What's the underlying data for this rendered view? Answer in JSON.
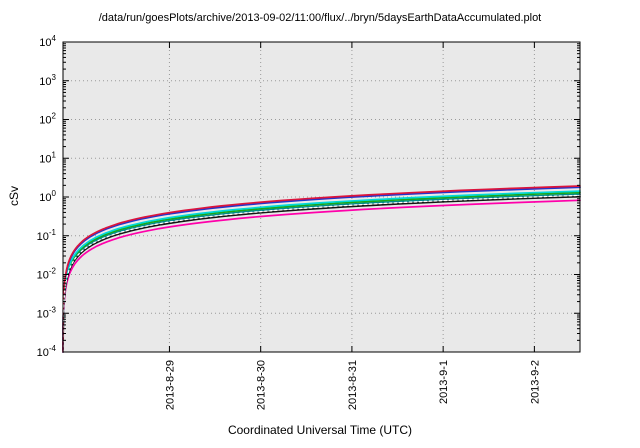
{
  "title": "/data/run/goesPlots/archive/2013-09-02/11:00/flux/../bryn/5daysEarthDataAccumulated.plot",
  "chart_data": {
    "type": "line",
    "title": "/data/run/goesPlots/archive/2013-09-02/11:00/flux/../bryn/5daysEarthDataAccumulated.plot",
    "xlabel": "Coordinated Universal Time (UTC)",
    "ylabel": "cSv",
    "y_scale": "log10",
    "y_exponent_range": [
      -4,
      4
    ],
    "x_total_hours": 136,
    "x_ticks": [
      {
        "label": "2013-8-29",
        "hour": 28
      },
      {
        "label": "2013-8-30",
        "hour": 52
      },
      {
        "label": "2013-8-31",
        "hour": 76
      },
      {
        "label": "2013-9-1",
        "hour": 100
      },
      {
        "label": "2013-9-2",
        "hour": 124
      }
    ],
    "grid": true,
    "legend": "none",
    "plot_background": "#e9e9e9",
    "grid_color": "#9a9a9a",
    "curve_model": "accumulated dose: y(t_hours) = end_value_cSv * t / x_total_hours, floored at 1e-4 cSv",
    "series": [
      {
        "name": "magenta-curve",
        "color": "#ff00aa",
        "line": "solid",
        "end_value_cSv": 0.82
      },
      {
        "name": "black-curve",
        "color": "#141414",
        "line": "solid",
        "end_value_cSv": 1.02
      },
      {
        "name": "teal-curve",
        "color": "#008c8c",
        "line": "solid",
        "end_value_cSv": 1.18
      },
      {
        "name": "green-curve",
        "color": "#18a818",
        "line": "solid",
        "end_value_cSv": 1.3
      },
      {
        "name": "cyan-curve",
        "color": "#00d8d8",
        "line": "solid",
        "end_value_cSv": 1.42
      },
      {
        "name": "blue-curve",
        "color": "#2233cc",
        "line": "solid",
        "end_value_cSv": 1.78
      },
      {
        "name": "crimson-curve",
        "color": "#dc143c",
        "line": "solid",
        "end_value_cSv": 1.92
      },
      {
        "name": "white-dotted-curve",
        "color": "#ffffff",
        "line": "dotted",
        "end_value_cSv": 1.1
      }
    ]
  }
}
